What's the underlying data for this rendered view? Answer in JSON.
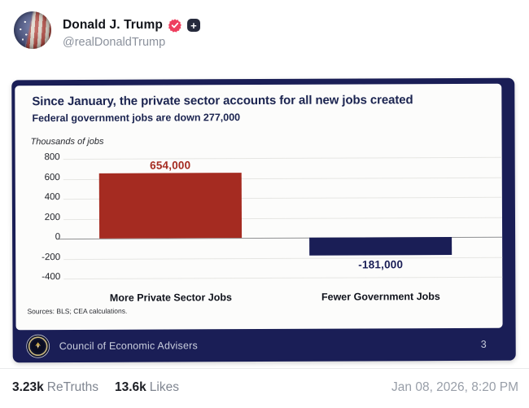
{
  "header": {
    "display_name": "Donald J. Trump",
    "handle": "@realDonaldTrump"
  },
  "chart_data": {
    "type": "bar",
    "title": "Since January, the private sector accounts for all new jobs created",
    "subtitle": "Federal government jobs are down 277,000",
    "axis_title": "Thousands of jobs",
    "categories": [
      "More Private Sector Jobs",
      "Fewer Government Jobs"
    ],
    "values": [
      654,
      -181
    ],
    "value_labels": [
      "654,000",
      "-181,000"
    ],
    "bar_colors": [
      "#a52b21",
      "#1a1e56"
    ],
    "ylim": [
      -400,
      800
    ],
    "yticks": [
      800,
      600,
      400,
      200,
      0,
      -200,
      -400
    ],
    "grid": true,
    "legend": false,
    "sources": "Sources: BLS; CEA calculations."
  },
  "slide_footer": {
    "org": "Council of Economic Advisers",
    "page_number": "3"
  },
  "engagement": {
    "retruths_count": "3.23k",
    "retruths_label": "ReTruths",
    "likes_count": "13.6k",
    "likes_label": "Likes",
    "timestamp": "Jan 08, 2026, 8:20 PM"
  },
  "colors": {
    "accent_navy": "#1a1e56",
    "bar_red": "#a52b21",
    "verified_pink": "#ee3e5e",
    "title_navy": "#1b2450"
  }
}
